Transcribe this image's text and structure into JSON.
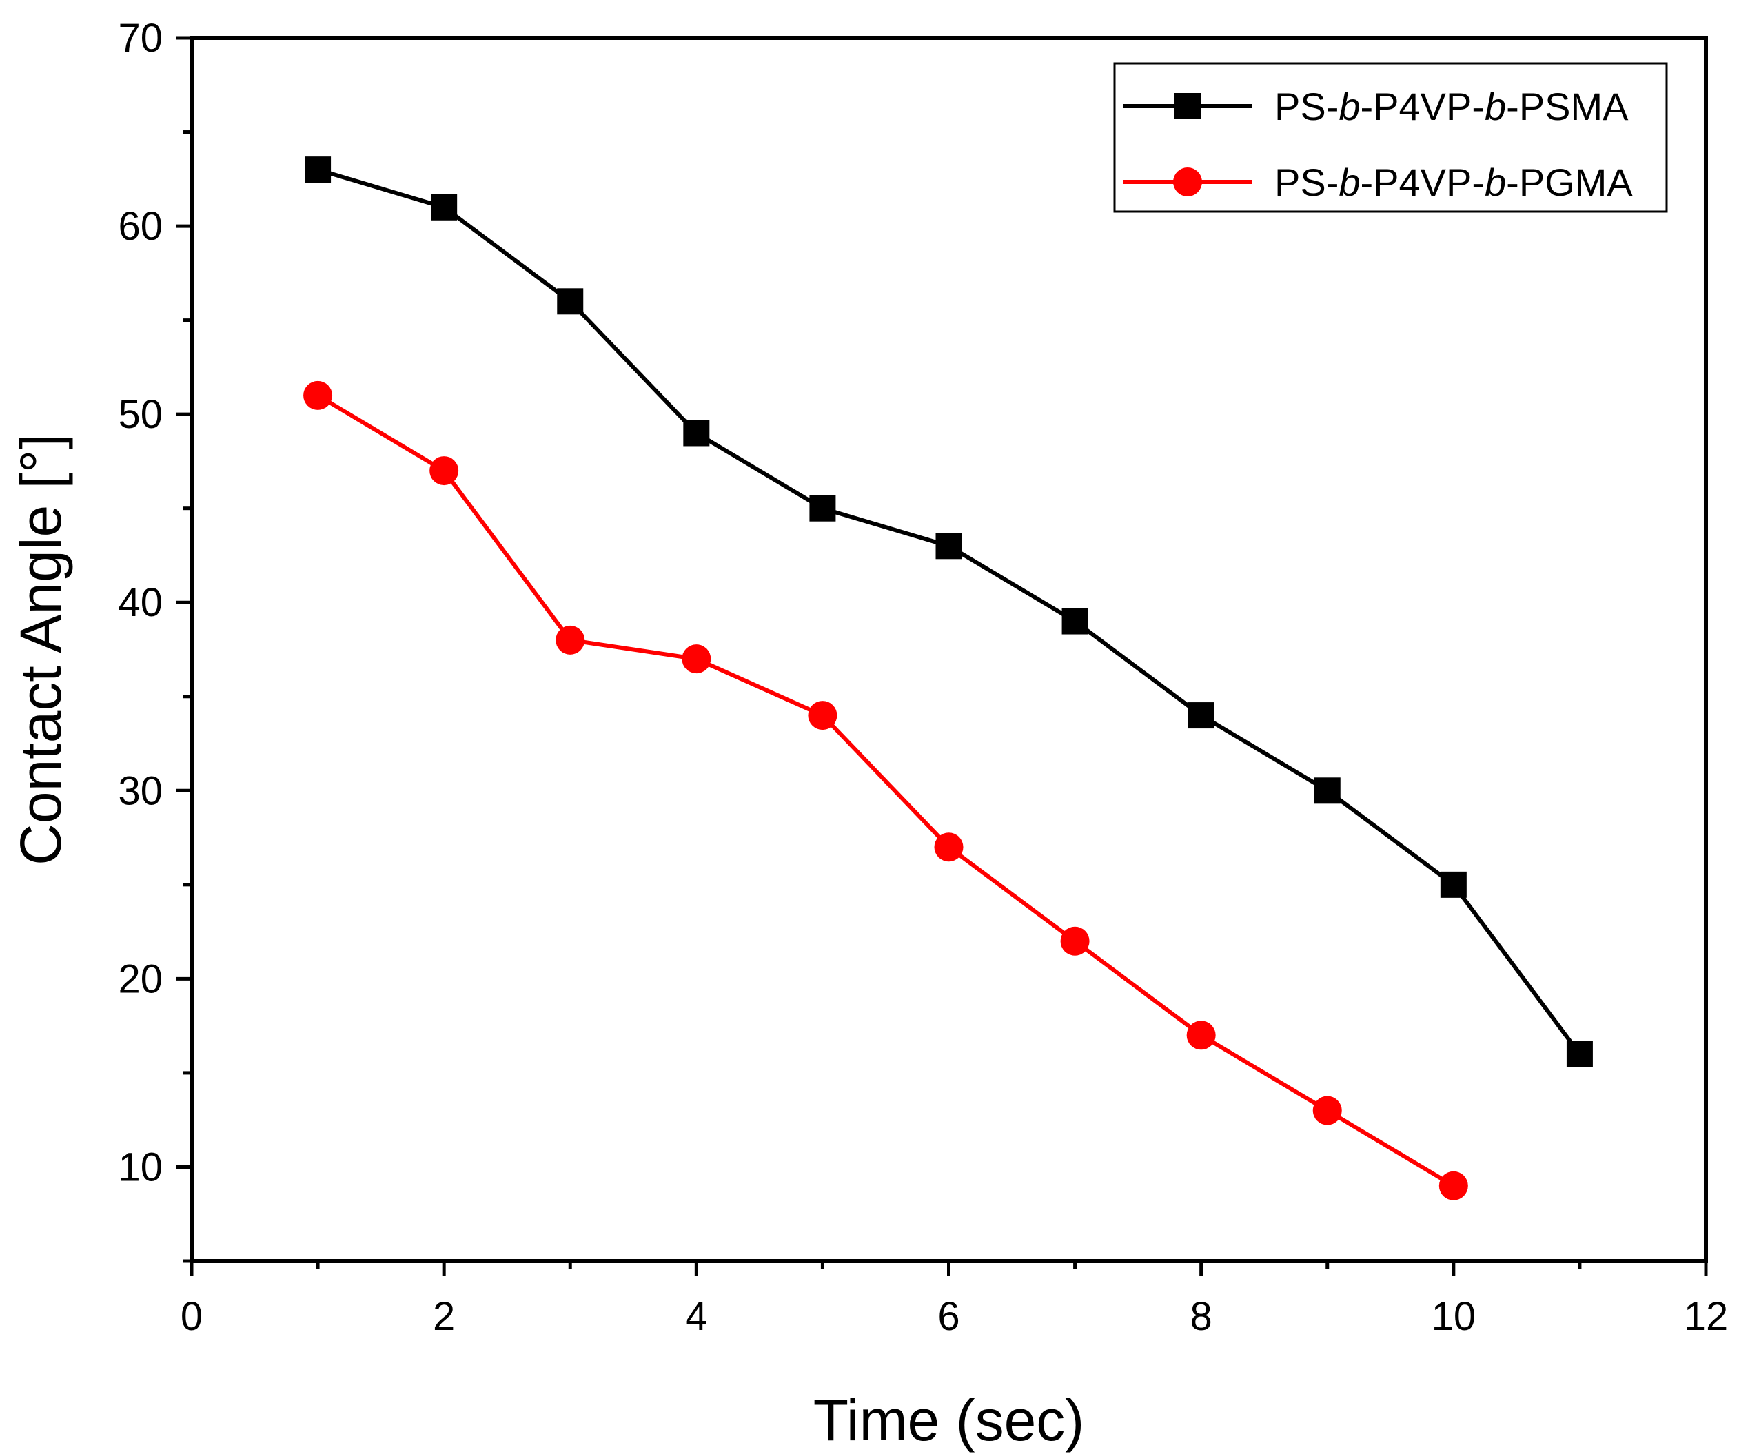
{
  "chart_data": {
    "type": "line",
    "title": "",
    "xlabel": "Time (sec)",
    "ylabel": "Contact Angle [°]",
    "xlim": [
      0,
      12
    ],
    "ylim": [
      5,
      70
    ],
    "xticks": [
      0,
      2,
      4,
      6,
      8,
      10,
      12
    ],
    "yticks": [
      10,
      20,
      30,
      40,
      50,
      60,
      70
    ],
    "grid": false,
    "legend_position": "top-right",
    "series": [
      {
        "name": "PS-b-P4VP-b-PSMA",
        "legend_parts": [
          "PS-",
          "b",
          "-P4VP-",
          "b",
          "-PSMA"
        ],
        "color": "#000000",
        "marker": "square",
        "x": [
          1,
          2,
          3,
          4,
          5,
          6,
          7,
          8,
          9,
          10,
          11
        ],
        "y": [
          63,
          61,
          56,
          49,
          45,
          43,
          39,
          34,
          30,
          25,
          16
        ]
      },
      {
        "name": "PS-b-P4VP-b-PGMA",
        "legend_parts": [
          "PS-",
          "b",
          "-P4VP-",
          "b",
          "-PGMA"
        ],
        "color": "#ff0000",
        "marker": "circle",
        "x": [
          1,
          2,
          3,
          4,
          5,
          6,
          7,
          8,
          9,
          10
        ],
        "y": [
          51,
          47,
          38,
          37,
          34,
          27,
          22,
          17,
          13,
          9
        ]
      }
    ]
  }
}
